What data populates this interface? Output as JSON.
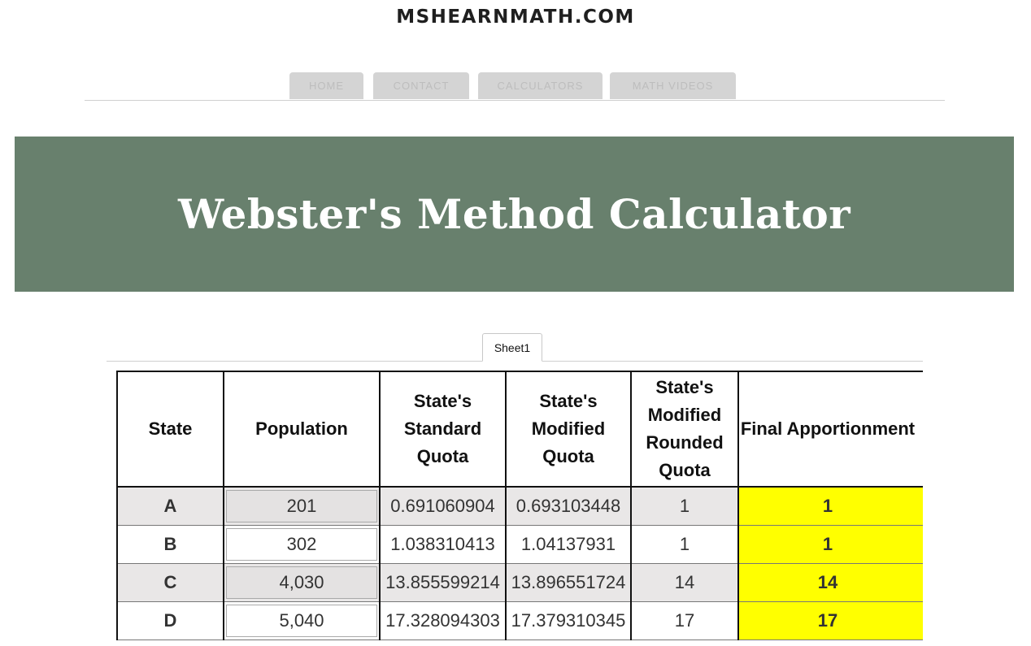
{
  "site": {
    "title": "MSHEARNMATH.COM"
  },
  "nav": {
    "tabs": [
      {
        "label": "HOME"
      },
      {
        "label": "CONTACT"
      },
      {
        "label": "CALCULATORS"
      },
      {
        "label": "MATH VIDEOS"
      }
    ]
  },
  "banner": {
    "title": "Webster's Method Calculator",
    "color": "#68806d"
  },
  "sheet": {
    "tab_label": "Sheet1"
  },
  "table": {
    "headers": {
      "state": "State",
      "population": "Population",
      "standard_quota": "State's Standard Quota",
      "modified_quota": "State's Modified Quota",
      "rounded_quota": "State's Modified Rounded Quota",
      "final": "Final Apportionment"
    },
    "highlight_color": "#ffff00",
    "rows": [
      {
        "state": "A",
        "population": "201",
        "standard_quota": "0.691060904",
        "modified_quota": "0.693103448",
        "rounded_quota": "1",
        "final": "1"
      },
      {
        "state": "B",
        "population": "302",
        "standard_quota": "1.038310413",
        "modified_quota": "1.04137931",
        "rounded_quota": "1",
        "final": "1"
      },
      {
        "state": "C",
        "population": "4,030",
        "standard_quota": "13.855599214",
        "modified_quota": "13.896551724",
        "rounded_quota": "14",
        "final": "14"
      },
      {
        "state": "D",
        "population": "5,040",
        "standard_quota": "17.328094303",
        "modified_quota": "17.379310345",
        "rounded_quota": "17",
        "final": "17"
      }
    ]
  }
}
